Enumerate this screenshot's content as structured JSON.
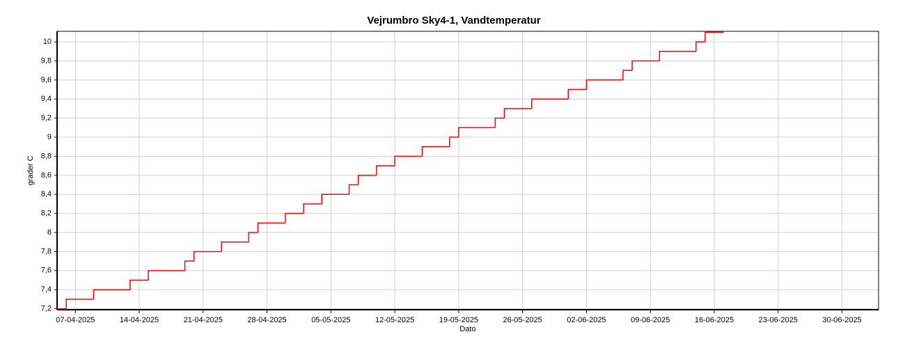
{
  "chart_data": {
    "type": "step",
    "title": "Vejrumbro Sky4-1, Vandtemperatur",
    "x_label": "Dato",
    "y_label": "grader C",
    "series": [
      {
        "name": "Vandtemperatur",
        "color": "#ff0000",
        "x": [
          "2025-04-05",
          "2025-04-06",
          "2025-04-09",
          "2025-04-13",
          "2025-04-15",
          "2025-04-19",
          "2025-04-20",
          "2025-04-23",
          "2025-04-26",
          "2025-04-27",
          "2025-04-30",
          "2025-05-02",
          "2025-05-04",
          "2025-05-07",
          "2025-05-08",
          "2025-05-10",
          "2025-05-12",
          "2025-05-15",
          "2025-05-18",
          "2025-05-19",
          "2025-05-23",
          "2025-05-24",
          "2025-05-27",
          "2025-05-31",
          "2025-06-02",
          "2025-06-06",
          "2025-06-07",
          "2025-06-10",
          "2025-06-14",
          "2025-06-15",
          "2025-06-17"
        ],
        "values": [
          7.2,
          7.3,
          7.4,
          7.5,
          7.6,
          7.7,
          7.8,
          7.9,
          8.0,
          8.1,
          8.2,
          8.3,
          8.4,
          8.5,
          8.6,
          8.7,
          8.8,
          8.9,
          9.0,
          9.1,
          9.2,
          9.3,
          9.4,
          9.5,
          9.6,
          9.7,
          9.8,
          9.9,
          10.0,
          10.1,
          10.1
        ]
      }
    ],
    "xlim": [
      "2025-04-05",
      "2025-07-04"
    ],
    "xticks": [
      {
        "value": "2025-04-07",
        "label": "07-04-2025"
      },
      {
        "value": "2025-04-14",
        "label": "14-04-2025"
      },
      {
        "value": "2025-04-21",
        "label": "21-04-2025"
      },
      {
        "value": "2025-04-28",
        "label": "28-04-2025"
      },
      {
        "value": "2025-05-05",
        "label": "05-05-2025"
      },
      {
        "value": "2025-05-12",
        "label": "12-05-2025"
      },
      {
        "value": "2025-05-19",
        "label": "19-05-2025"
      },
      {
        "value": "2025-05-26",
        "label": "26-05-2025"
      },
      {
        "value": "2025-06-02",
        "label": "02-06-2025"
      },
      {
        "value": "2025-06-09",
        "label": "09-06-2025"
      },
      {
        "value": "2025-06-16",
        "label": "16-06-2025"
      },
      {
        "value": "2025-06-23",
        "label": "23-06-2025"
      },
      {
        "value": "2025-06-30",
        "label": "30-06-2025"
      }
    ],
    "ylim": [
      7.19,
      10.11
    ],
    "yticks": [
      {
        "value": 7.2,
        "label": "7,2"
      },
      {
        "value": 7.4,
        "label": "7,4"
      },
      {
        "value": 7.6,
        "label": "7,6"
      },
      {
        "value": 7.8,
        "label": "7,8"
      },
      8,
      {
        "value": 8.2,
        "label": "8,2"
      },
      {
        "value": 8.4,
        "label": "8,4"
      },
      {
        "value": 8.6,
        "label": "8,6"
      },
      {
        "value": 8.8,
        "label": "8,8"
      },
      9,
      {
        "value": 9.2,
        "label": "9,2"
      },
      {
        "value": 9.4,
        "label": "9,4"
      },
      {
        "value": 9.6,
        "label": "9,6"
      },
      {
        "value": 9.8,
        "label": "9,8"
      },
      10
    ],
    "grid": true
  }
}
